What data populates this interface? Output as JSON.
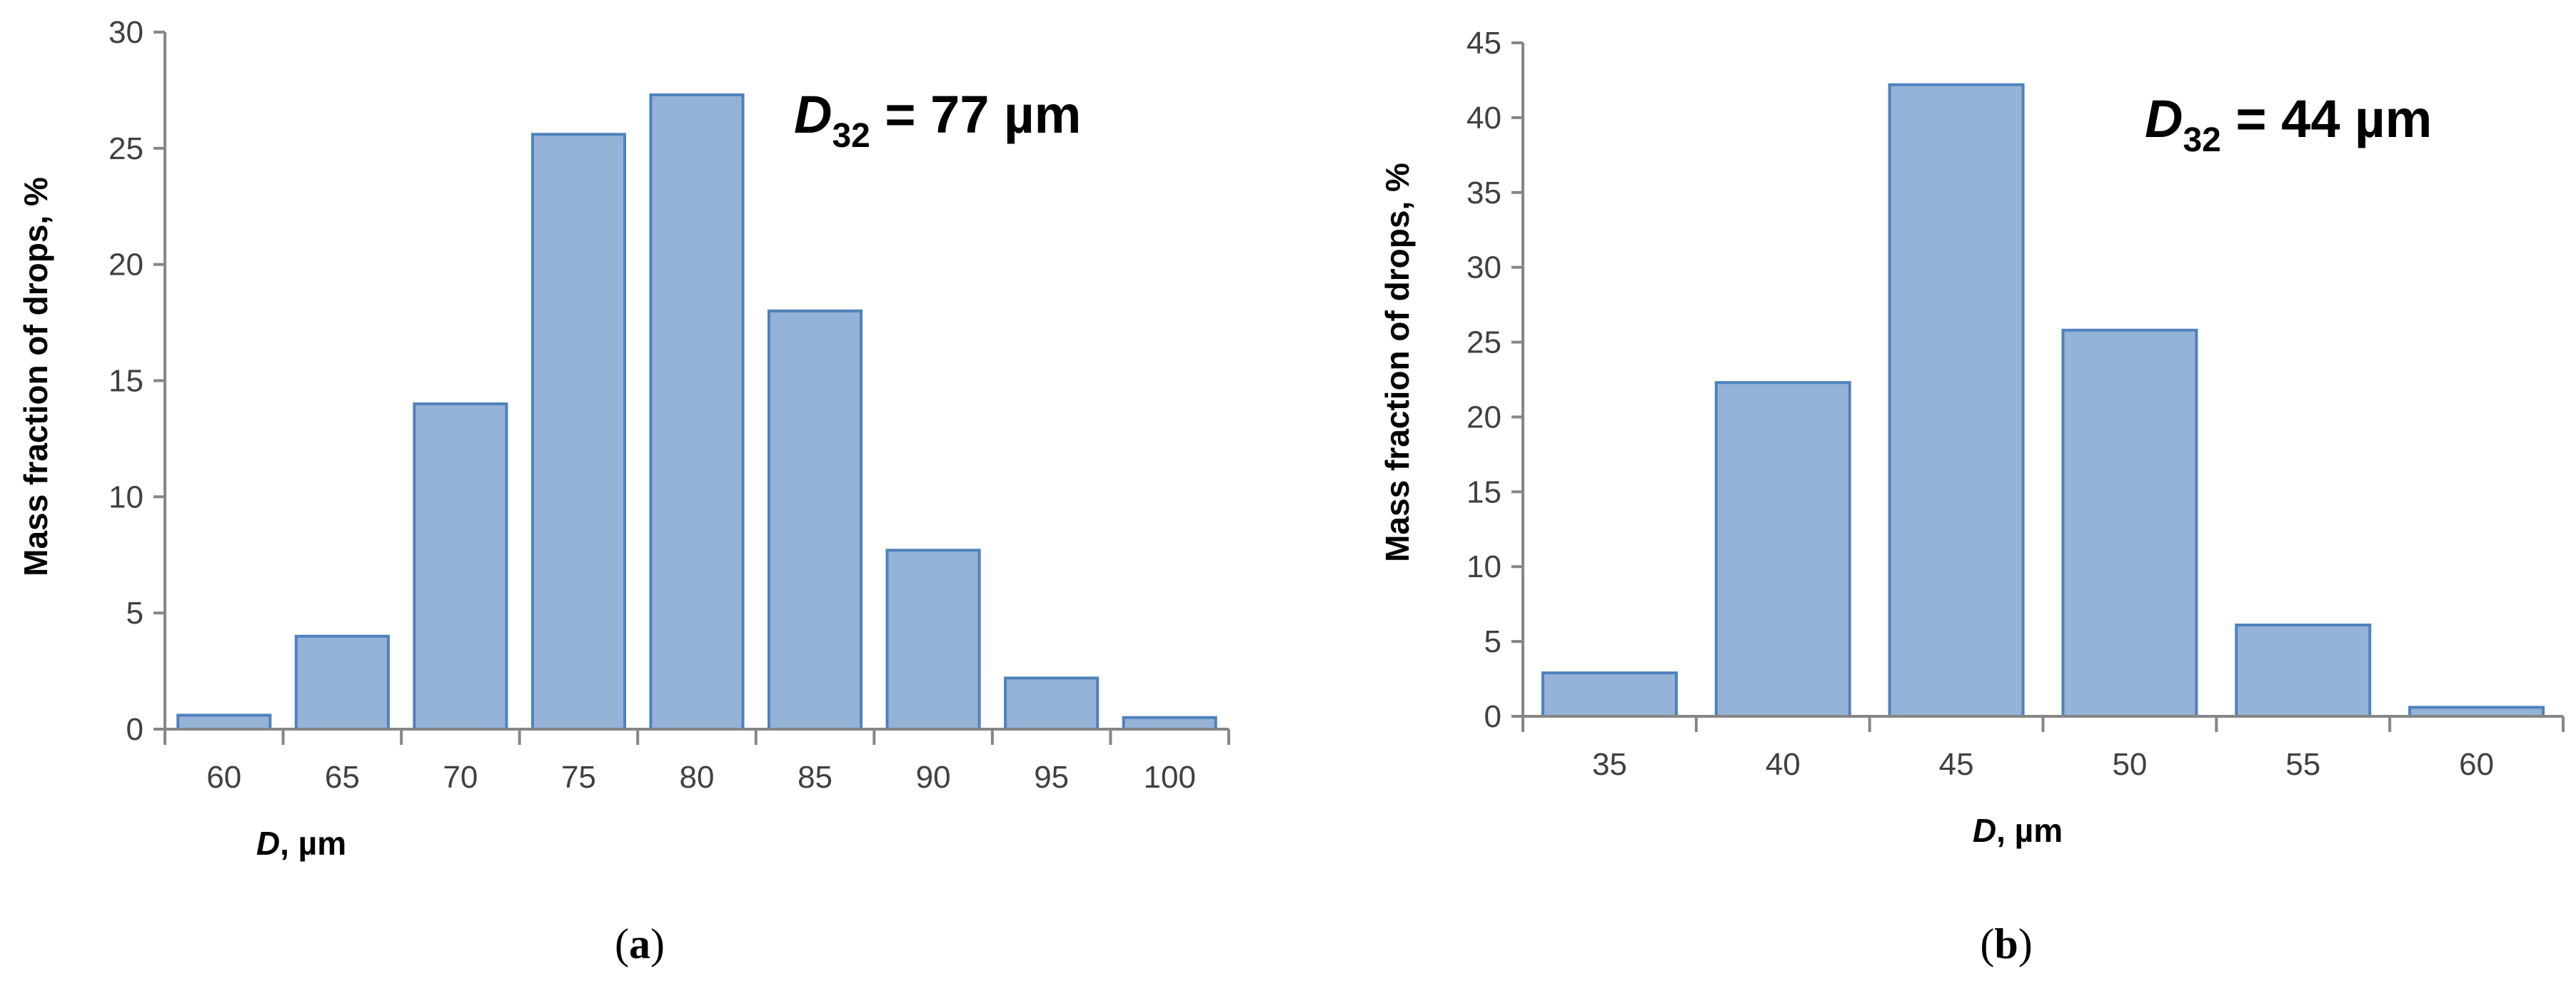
{
  "chart_data": [
    {
      "type": "bar",
      "panel_label": "(a)",
      "panel_letter": "a",
      "annotation": {
        "symbol": "D",
        "subscript": "32",
        "text": " = 77 µm"
      },
      "xlabel": {
        "italic": "D",
        "rest": ", µm"
      },
      "ylabel": "Mass fraction of drops, %",
      "categories": [
        "60",
        "65",
        "70",
        "75",
        "80",
        "85",
        "90",
        "95",
        "100"
      ],
      "values": [
        0.6,
        4.0,
        14.0,
        25.6,
        27.3,
        18.0,
        7.7,
        2.2,
        0.5
      ],
      "ylim": [
        0,
        30
      ],
      "yticks": [
        0,
        5,
        10,
        15,
        20,
        25,
        30
      ],
      "grid": false,
      "colors": {
        "fill": "#95b3d7",
        "edge": "#4f81bd"
      }
    },
    {
      "type": "bar",
      "panel_label": "(b)",
      "panel_letter": "b",
      "annotation": {
        "symbol": "D",
        "subscript": "32",
        "text": " = 44 µm"
      },
      "xlabel": {
        "italic": "D",
        "rest": ", µm"
      },
      "ylabel": "Mass fraction of drops, %",
      "categories": [
        "35",
        "40",
        "45",
        "50",
        "55",
        "60"
      ],
      "values": [
        2.9,
        22.3,
        42.2,
        25.8,
        6.1,
        0.6
      ],
      "ylim": [
        0,
        45
      ],
      "yticks": [
        0,
        5,
        10,
        15,
        20,
        25,
        30,
        35,
        40,
        45
      ],
      "grid": false,
      "colors": {
        "fill": "#95b3d7",
        "edge": "#4f81bd"
      }
    }
  ]
}
